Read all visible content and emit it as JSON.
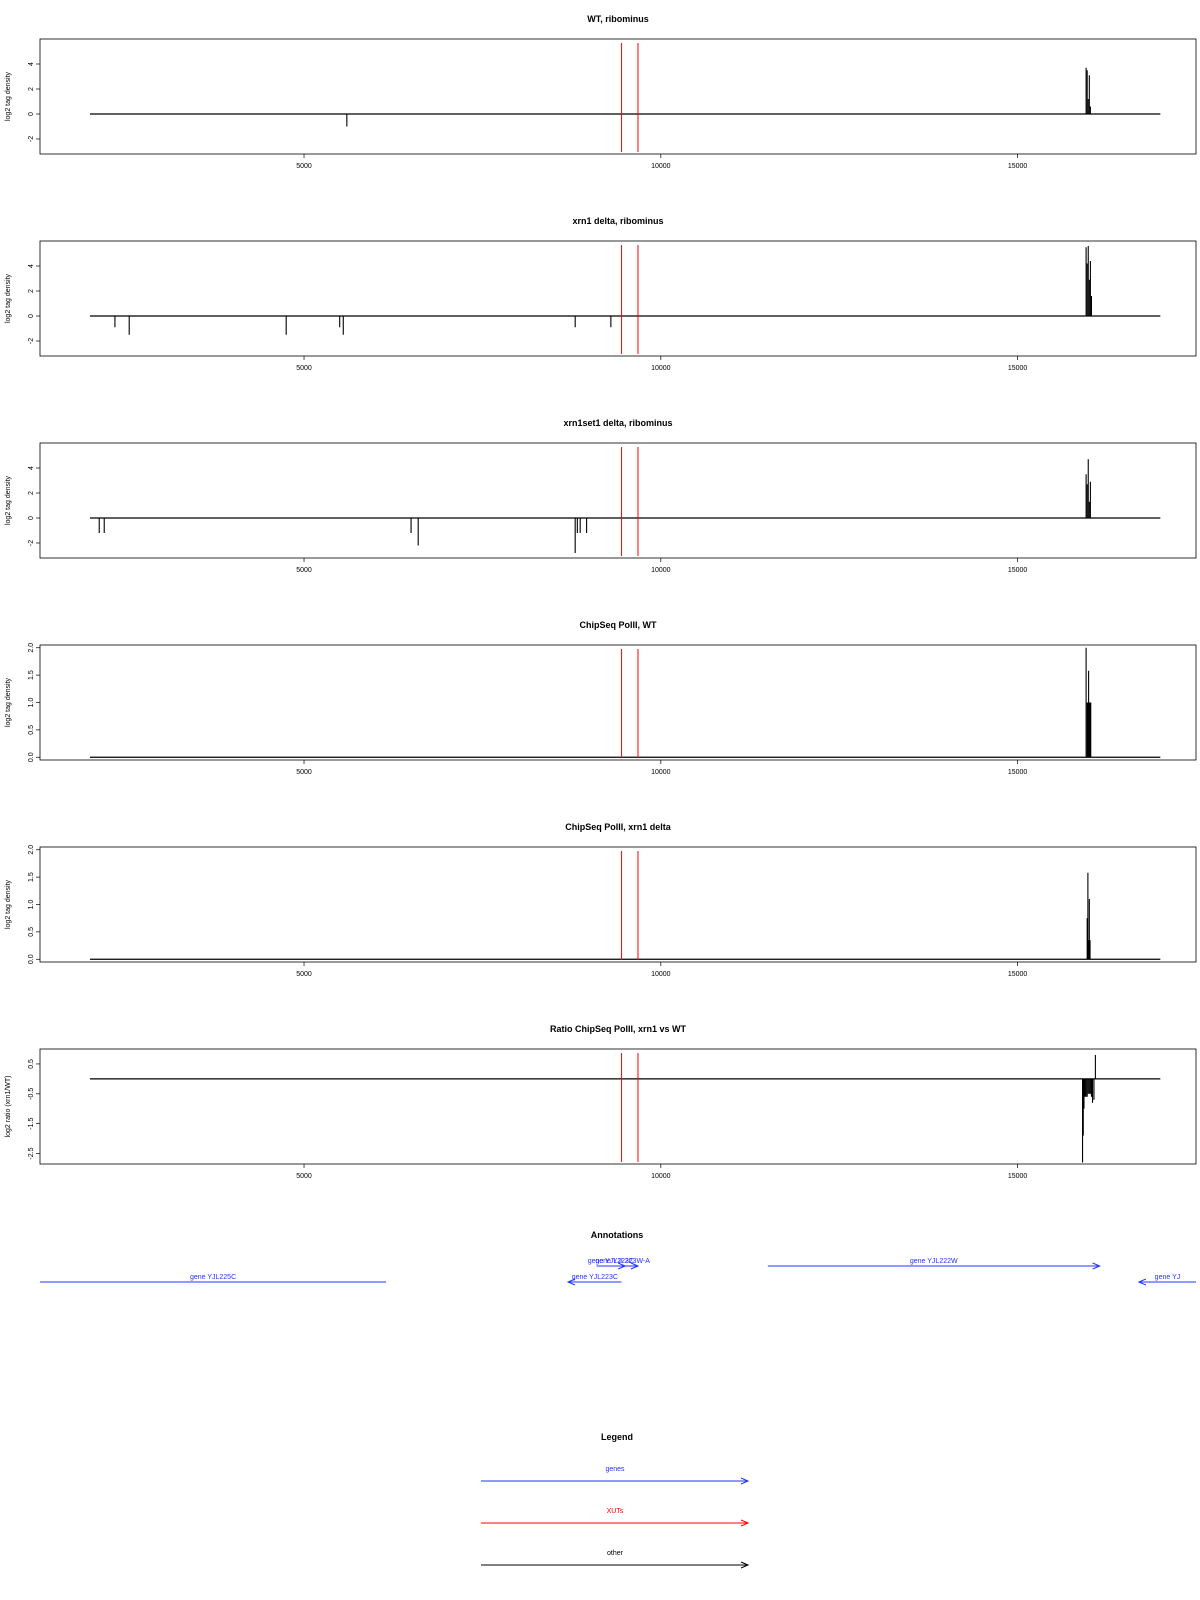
{
  "chart_data": [
    {
      "id": "wt-ribominus",
      "type": "line",
      "title": "WT, ribominus",
      "ylabel": "log2 tag density",
      "xlim": [
        1300,
        17500
      ],
      "ylim": [
        -3.2,
        6
      ],
      "xticks": [
        5000,
        10000,
        15000
      ],
      "yticks": [
        -2,
        0,
        2,
        4
      ],
      "ytick_labels": [
        "-2",
        "0",
        "2",
        "4"
      ],
      "baseline": {
        "from": 2000,
        "to": 17000,
        "value": 0
      },
      "xut_lines": [
        9450,
        9680
      ],
      "spikes": [
        {
          "x": 5600,
          "y": -1
        },
        {
          "x": 15960,
          "y": 3.7
        },
        {
          "x": 15975,
          "y": 3.5
        },
        {
          "x": 15990,
          "y": 1.2
        },
        {
          "x": 16005,
          "y": 3.1
        },
        {
          "x": 16020,
          "y": 0.6
        }
      ]
    },
    {
      "id": "xrn1-ribominus",
      "type": "line",
      "title": "xrn1 delta, ribominus",
      "ylabel": "log2 tag density",
      "xlim": [
        1300,
        17500
      ],
      "ylim": [
        -3.2,
        6
      ],
      "xticks": [
        5000,
        10000,
        15000
      ],
      "yticks": [
        -2,
        0,
        2,
        4
      ],
      "ytick_labels": [
        "-2",
        "0",
        "2",
        "4"
      ],
      "baseline": {
        "from": 2000,
        "to": 17000,
        "value": 0
      },
      "xut_lines": [
        9450,
        9680
      ],
      "spikes": [
        {
          "x": 2350,
          "y": -0.9
        },
        {
          "x": 2550,
          "y": -1.5
        },
        {
          "x": 4750,
          "y": -1.5
        },
        {
          "x": 5500,
          "y": -0.9
        },
        {
          "x": 5550,
          "y": -1.5
        },
        {
          "x": 8800,
          "y": -0.9
        },
        {
          "x": 9300,
          "y": -0.9
        },
        {
          "x": 15960,
          "y": 5.5
        },
        {
          "x": 15975,
          "y": 4.2
        },
        {
          "x": 15990,
          "y": 5.6
        },
        {
          "x": 16005,
          "y": 2.9
        },
        {
          "x": 16020,
          "y": 4.4
        },
        {
          "x": 16035,
          "y": 1.6
        }
      ]
    },
    {
      "id": "xrn1set1-ribominus",
      "type": "line",
      "title": "xrn1set1 delta, ribominus",
      "ylabel": "log2 tag density",
      "xlim": [
        1300,
        17500
      ],
      "ylim": [
        -3.2,
        6
      ],
      "xticks": [
        5000,
        10000,
        15000
      ],
      "yticks": [
        -2,
        0,
        2,
        4
      ],
      "ytick_labels": [
        "-2",
        "0",
        "2",
        "4"
      ],
      "baseline": {
        "from": 2000,
        "to": 17000,
        "value": 0
      },
      "xut_lines": [
        9450,
        9680
      ],
      "spikes": [
        {
          "x": 2130,
          "y": -1.2
        },
        {
          "x": 2200,
          "y": -1.2
        },
        {
          "x": 6500,
          "y": -1.2
        },
        {
          "x": 6600,
          "y": -2.2
        },
        {
          "x": 8800,
          "y": -2.8
        },
        {
          "x": 8830,
          "y": -1.2
        },
        {
          "x": 8870,
          "y": -1.2
        },
        {
          "x": 8960,
          "y": -1.2
        },
        {
          "x": 15960,
          "y": 3.5
        },
        {
          "x": 15975,
          "y": 2.7
        },
        {
          "x": 15990,
          "y": 4.7
        },
        {
          "x": 16005,
          "y": 1.3
        },
        {
          "x": 16020,
          "y": 2.9
        }
      ]
    },
    {
      "id": "chipseq-wt",
      "type": "line",
      "title": "ChipSeq PolII, WT",
      "ylabel": "log2 tag density",
      "xlim": [
        1300,
        17500
      ],
      "ylim": [
        -0.05,
        2.05
      ],
      "xticks": [
        5000,
        10000,
        15000
      ],
      "yticks": [
        0,
        0.5,
        1,
        1.5,
        2
      ],
      "ytick_labels": [
        "0.0",
        "0.5",
        "1.0",
        "1.5",
        "2.0"
      ],
      "baseline": {
        "from": 2000,
        "to": 17000,
        "value": 0
      },
      "xut_lines": [
        9450,
        9680
      ],
      "spikes": [
        {
          "x": 15960,
          "y": 2.0
        },
        {
          "x": 15975,
          "y": 1.0
        },
        {
          "x": 15985,
          "y": 1.0
        },
        {
          "x": 15995,
          "y": 1.58
        },
        {
          "x": 16005,
          "y": 1.0
        },
        {
          "x": 16015,
          "y": 1.0
        },
        {
          "x": 16025,
          "y": 1.0
        }
      ]
    },
    {
      "id": "chipseq-xrn1",
      "type": "line",
      "title": "ChipSeq PolII, xrn1 delta",
      "ylabel": "log2 tag density",
      "xlim": [
        1300,
        17500
      ],
      "ylim": [
        -0.05,
        2.05
      ],
      "xticks": [
        5000,
        10000,
        15000
      ],
      "yticks": [
        0,
        0.5,
        1,
        1.5,
        2
      ],
      "ytick_labels": [
        "0.0",
        "0.5",
        "1.0",
        "1.5",
        "2.0"
      ],
      "baseline": {
        "from": 2000,
        "to": 17000,
        "value": 0
      },
      "xut_lines": [
        9450,
        9680
      ],
      "spikes": [
        {
          "x": 15975,
          "y": 0.75
        },
        {
          "x": 15985,
          "y": 1.58
        },
        {
          "x": 15995,
          "y": 0.35
        },
        {
          "x": 16005,
          "y": 1.1
        },
        {
          "x": 16015,
          "y": 0.35
        }
      ]
    },
    {
      "id": "ratio-chipseq",
      "type": "line",
      "title": "Ratio ChipSeq PolII, xrn1 vs WT",
      "ylabel": "log2 ratio (xrn1/WT)",
      "xlim": [
        1300,
        17500
      ],
      "ylim": [
        -2.85,
        1.0
      ],
      "xticks": [
        5000,
        10000,
        15000
      ],
      "yticks": [
        0.5,
        -0.5,
        -1.5,
        -2.5
      ],
      "ytick_labels": [
        "0.5",
        "-0.5",
        "-1.5",
        "-2.5"
      ],
      "baseline": {
        "from": 2000,
        "to": 17000,
        "value": 0
      },
      "xut_lines": [
        9450,
        9680
      ],
      "spikes": [
        {
          "x": 15910,
          "y": -2.8
        },
        {
          "x": 15920,
          "y": -1.9
        },
        {
          "x": 15930,
          "y": -1.0
        },
        {
          "x": 15945,
          "y": -0.6
        },
        {
          "x": 15960,
          "y": -0.6
        },
        {
          "x": 15975,
          "y": -0.6
        },
        {
          "x": 15990,
          "y": -0.5
        },
        {
          "x": 16005,
          "y": -0.5
        },
        {
          "x": 16020,
          "y": -0.5
        },
        {
          "x": 16035,
          "y": -0.6
        },
        {
          "x": 16050,
          "y": -0.8
        },
        {
          "x": 16070,
          "y": -0.7
        },
        {
          "x": 16090,
          "y": 0.8
        }
      ]
    }
  ],
  "annotations": {
    "title": "Annotations",
    "genes": [
      {
        "label": "gene YJL225C",
        "start": 1300,
        "end": 6150,
        "direction": "none",
        "row": 2
      },
      {
        "label": "gene YJL223C",
        "start": 9450,
        "end": 8700,
        "direction": "left",
        "row": 2
      },
      {
        "label": "gene YJL223W-A",
        "start": 9250,
        "end": 9680,
        "direction": "right",
        "row": 1
      },
      {
        "label": "gene YJL223C",
        "start": 9100,
        "end": 9500,
        "direction": "right",
        "row": 1
      },
      {
        "label": "gene YJL222W",
        "start": 11500,
        "end": 16150,
        "direction": "right",
        "row": 1
      },
      {
        "label": "gene YJ",
        "start": 17500,
        "end": 16700,
        "direction": "left",
        "row": 2
      }
    ]
  },
  "legend": {
    "title": "Legend",
    "items": [
      {
        "label": "genes",
        "color": "#2233ff"
      },
      {
        "label": "XUTs",
        "color": "#ff0000"
      },
      {
        "label": "other",
        "color": "#000000"
      }
    ]
  },
  "colors": {
    "data": "#000000",
    "xut": "#ff0000",
    "gene": "#2233ff",
    "frame": "#000000"
  }
}
